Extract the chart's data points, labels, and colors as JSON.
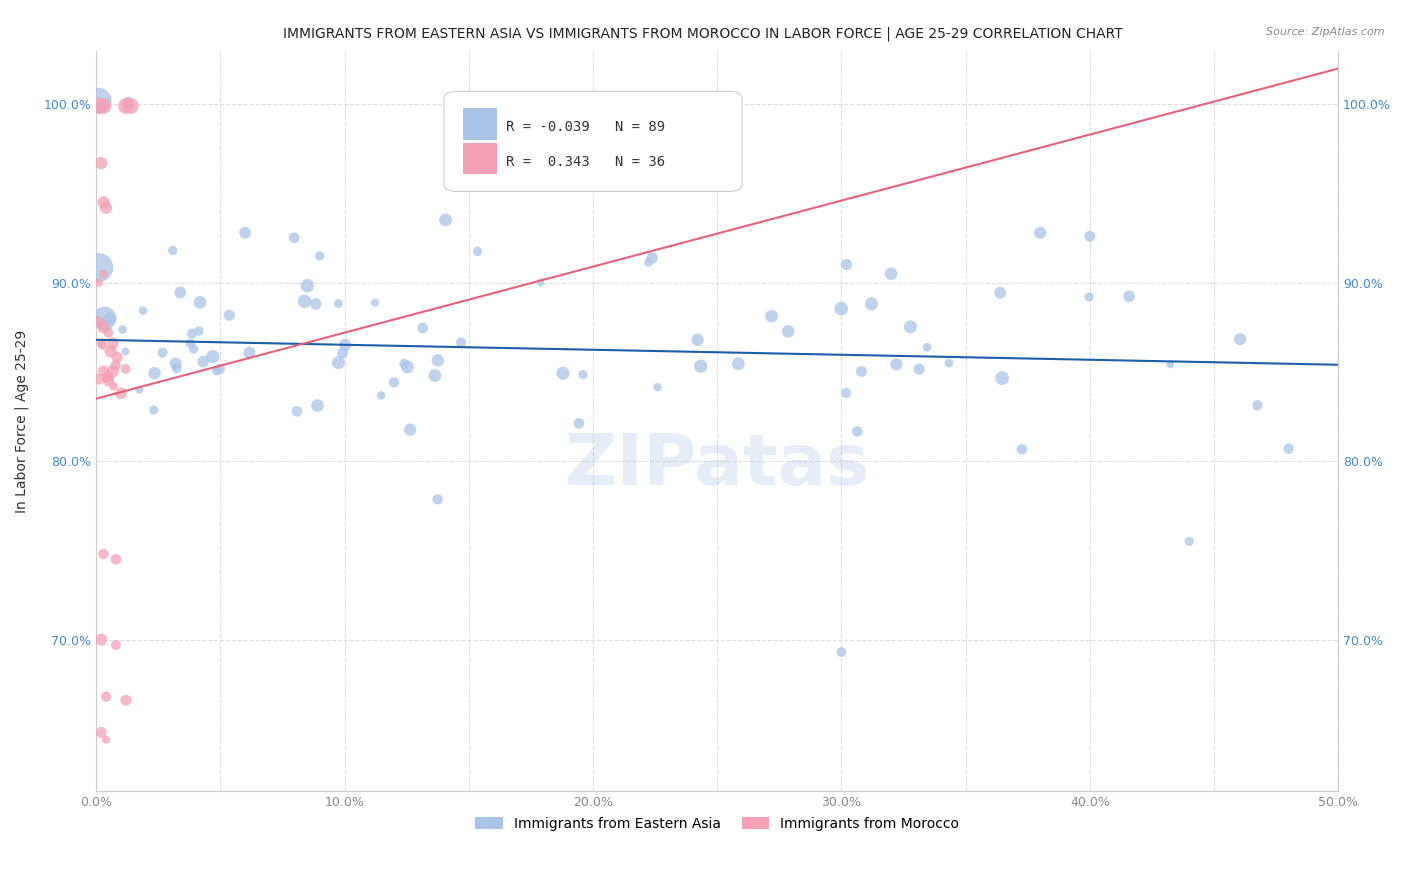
{
  "title": "IMMIGRANTS FROM EASTERN ASIA VS IMMIGRANTS FROM MOROCCO IN LABOR FORCE | AGE 25-29 CORRELATION CHART",
  "source": "Source: ZipAtlas.com",
  "ylabel": "In Labor Force | Age 25-29",
  "xlim": [
    0.0,
    0.5
  ],
  "ylim": [
    0.615,
    1.03
  ],
  "xticks": [
    0.0,
    0.05,
    0.1,
    0.15,
    0.2,
    0.25,
    0.3,
    0.35,
    0.4,
    0.45,
    0.5
  ],
  "xticklabels": [
    "0.0%",
    "",
    "10.0%",
    "",
    "20.0%",
    "",
    "30.0%",
    "",
    "40.0%",
    "",
    "50.0%"
  ],
  "yticks": [
    0.7,
    0.8,
    0.9,
    1.0
  ],
  "yticklabels": [
    "70.0%",
    "80.0%",
    "90.0%",
    "100.0%"
  ],
  "grid_color": "#dddddd",
  "blue_color": "#aac4e8",
  "pink_color": "#f4a0b5",
  "blue_line_color": "#1a5fa8",
  "pink_line_color": "#e8607a",
  "legend_blue_label": "Immigrants from Eastern Asia",
  "legend_pink_label": "Immigrants from Morocco",
  "R_blue": -0.039,
  "N_blue": 89,
  "R_pink": 0.343,
  "N_pink": 36,
  "blue_trend": [
    0.0,
    0.5,
    0.868,
    0.854
  ],
  "pink_trend": [
    0.0,
    0.5,
    0.835,
    1.02
  ],
  "watermark": "ZIPatas",
  "figsize": [
    14.06,
    8.92
  ],
  "dpi": 100
}
